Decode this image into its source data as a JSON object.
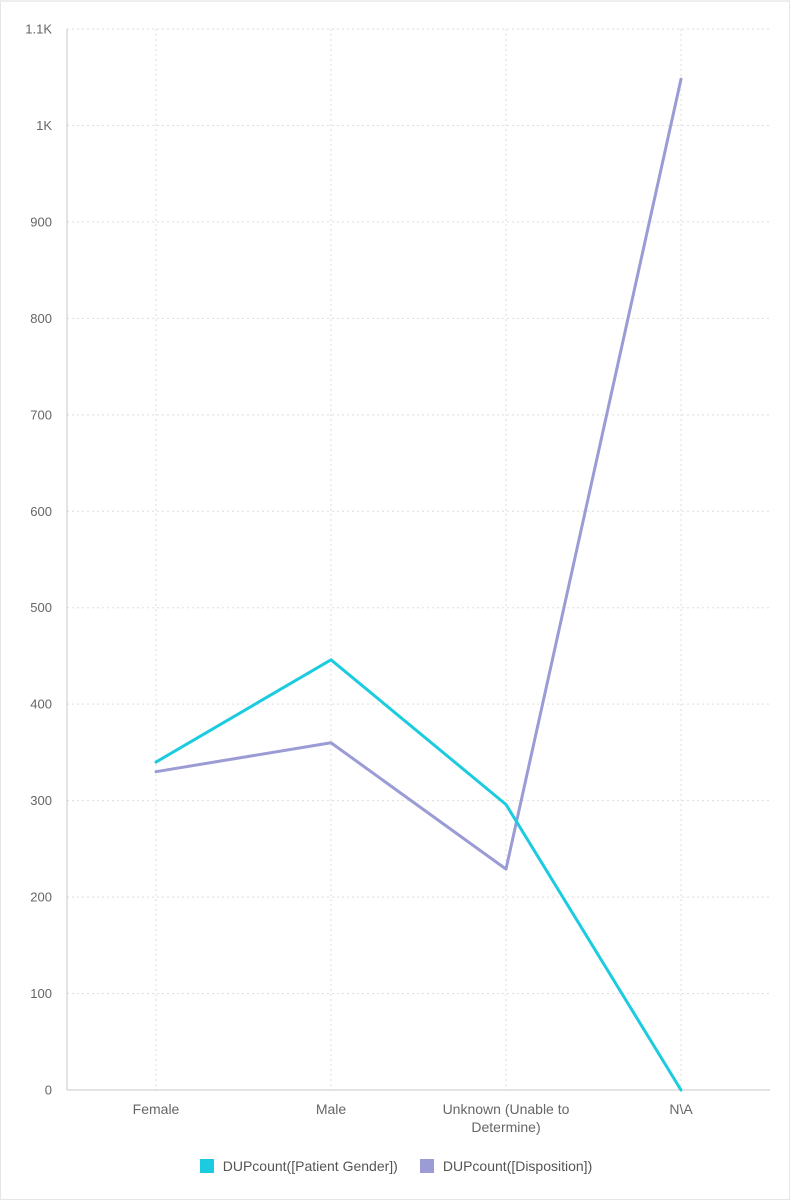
{
  "chart_data": {
    "type": "line",
    "categories": [
      "Female",
      "Male",
      "Unknown (Unable to Determine)",
      "N\\A"
    ],
    "category_label_lines": [
      [
        "Female"
      ],
      [
        "Male"
      ],
      [
        "Unknown (Unable to",
        "Determine)"
      ],
      [
        "N\\A"
      ]
    ],
    "y_ticks": [
      0,
      100,
      200,
      300,
      400,
      500,
      600,
      700,
      800,
      900,
      1000,
      1100
    ],
    "y_tick_labels": [
      "0",
      "100",
      "200",
      "300",
      "400",
      "500",
      "600",
      "700",
      "800",
      "900",
      "1K",
      "1.1K"
    ],
    "ylim": [
      0,
      1100
    ],
    "grid": true,
    "legend_position": "bottom",
    "series": [
      {
        "name": "DUPcount([Patient Gender])",
        "color": "#1ccbdf",
        "values": [
          340,
          446,
          296,
          0
        ]
      },
      {
        "name": "DUPcount([Disposition])",
        "color": "#9b9bd6",
        "values": [
          330,
          360,
          229,
          1048
        ]
      }
    ]
  }
}
